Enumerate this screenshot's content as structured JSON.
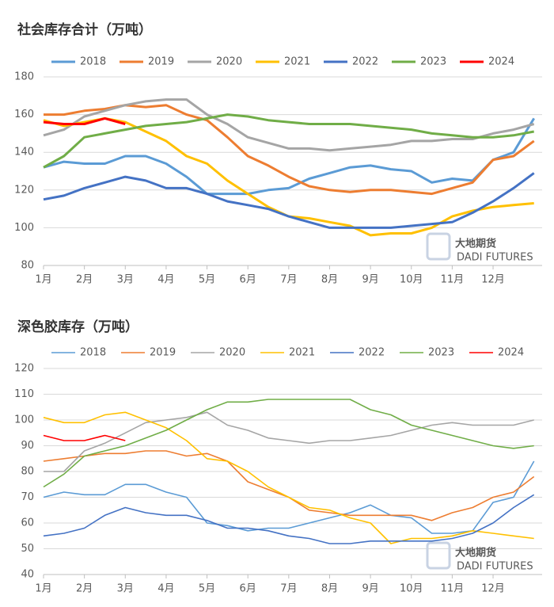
{
  "chart_data": [
    {
      "type": "line",
      "title": "社会库存合计（万吨）",
      "watermark": "大地期货",
      "watermark_sub": "DADI FUTURES",
      "x": [
        0,
        0.5,
        1,
        1.5,
        2,
        2.5,
        3,
        3.5,
        4,
        4.5,
        5,
        5.5,
        6,
        6.5,
        7,
        7.5,
        8,
        8.5,
        9,
        9.5,
        10,
        10.5,
        11,
        11.5,
        12
      ],
      "xlim": [
        0,
        12.2
      ],
      "xticks": [
        {
          "value": 0,
          "label": "1月"
        },
        {
          "value": 1,
          "label": "2月"
        },
        {
          "value": 2,
          "label": "3月"
        },
        {
          "value": 3,
          "label": "4月"
        },
        {
          "value": 4,
          "label": "5月"
        },
        {
          "value": 5,
          "label": "6月"
        },
        {
          "value": 6,
          "label": "7月"
        },
        {
          "value": 7,
          "label": "8月"
        },
        {
          "value": 8,
          "label": "9月"
        },
        {
          "value": 9,
          "label": "10月"
        },
        {
          "value": 10,
          "label": "11月"
        },
        {
          "value": 11,
          "label": "12月"
        }
      ],
      "ylim": [
        80,
        180
      ],
      "yticks": [
        80,
        100,
        120,
        140,
        160,
        180
      ],
      "grid": true,
      "series": [
        {
          "name": "2018",
          "color": "#5b9bd5",
          "values": [
            132,
            135,
            134,
            134,
            138,
            138,
            134,
            127,
            118,
            118,
            118,
            120,
            121,
            126,
            129,
            132,
            133,
            131,
            130,
            124,
            126,
            125,
            136,
            140,
            158
          ]
        },
        {
          "name": "2019",
          "color": "#ed7d31",
          "values": [
            160,
            160,
            162,
            163,
            165,
            164,
            165,
            160,
            157,
            148,
            138,
            133,
            127,
            122,
            120,
            119,
            120,
            120,
            119,
            118,
            121,
            124,
            136,
            138,
            146
          ]
        },
        {
          "name": "2020",
          "color": "#a5a5a5",
          "values": [
            149,
            152,
            159,
            162,
            165,
            167,
            168,
            168,
            160,
            155,
            148,
            145,
            142,
            142,
            141,
            142,
            143,
            144,
            146,
            146,
            147,
            147,
            150,
            152,
            155
          ]
        },
        {
          "name": "2021",
          "color": "#ffc000",
          "values": [
            157,
            154,
            156,
            158,
            156,
            151,
            146,
            138,
            134,
            125,
            118,
            111,
            106,
            105,
            103,
            101,
            96,
            97,
            97,
            100,
            106,
            109,
            111,
            112,
            113
          ]
        },
        {
          "name": "2022",
          "color": "#4472c4",
          "values": [
            115,
            117,
            121,
            124,
            127,
            125,
            121,
            121,
            118,
            114,
            112,
            110,
            106,
            103,
            100,
            100,
            100,
            100,
            101,
            102,
            103,
            108,
            114,
            121,
            129
          ]
        },
        {
          "name": "2023",
          "color": "#70ad47",
          "values": [
            132,
            138,
            148,
            150,
            152,
            154,
            155,
            156,
            158,
            160,
            159,
            157,
            156,
            155,
            155,
            155,
            154,
            153,
            152,
            150,
            149,
            148,
            148,
            149,
            151
          ]
        },
        {
          "name": "2024",
          "color": "#ff0000",
          "values": [
            156,
            155,
            155,
            158,
            155,
            null,
            null,
            null,
            null,
            null,
            null,
            null,
            null,
            null,
            null,
            null,
            null,
            null,
            null,
            null,
            null,
            null,
            null,
            null,
            null
          ]
        }
      ]
    },
    {
      "type": "line",
      "title": "深色胶库存（万吨）",
      "watermark": "大地期货",
      "watermark_sub": "DADI FUTURES",
      "x": [
        0,
        0.5,
        1,
        1.5,
        2,
        2.5,
        3,
        3.5,
        4,
        4.5,
        5,
        5.5,
        6,
        6.5,
        7,
        7.5,
        8,
        8.5,
        9,
        9.5,
        10,
        10.5,
        11,
        11.5,
        12
      ],
      "xlim": [
        0,
        12.2
      ],
      "xticks": [
        {
          "value": 0,
          "label": "1月"
        },
        {
          "value": 1,
          "label": "2月"
        },
        {
          "value": 2,
          "label": "3月"
        },
        {
          "value": 3,
          "label": "4月"
        },
        {
          "value": 4,
          "label": "5月"
        },
        {
          "value": 5,
          "label": "6月"
        },
        {
          "value": 6,
          "label": "7月"
        },
        {
          "value": 7,
          "label": "8月"
        },
        {
          "value": 8,
          "label": "9月"
        },
        {
          "value": 9,
          "label": "10月"
        },
        {
          "value": 10,
          "label": "11月"
        },
        {
          "value": 11,
          "label": "12月"
        }
      ],
      "ylim": [
        40,
        120
      ],
      "yticks": [
        40,
        50,
        60,
        70,
        80,
        90,
        100,
        110,
        120
      ],
      "grid": true,
      "series": [
        {
          "name": "2018",
          "color": "#5b9bd5",
          "values": [
            70,
            72,
            71,
            71,
            75,
            75,
            72,
            70,
            60,
            59,
            57,
            58,
            58,
            60,
            62,
            64,
            67,
            63,
            62,
            56,
            56,
            57,
            68,
            70,
            84
          ]
        },
        {
          "name": "2019",
          "color": "#ed7d31",
          "values": [
            84,
            85,
            86,
            87,
            87,
            88,
            88,
            86,
            87,
            84,
            76,
            73,
            70,
            65,
            64,
            63,
            63,
            63,
            63,
            61,
            64,
            66,
            70,
            72,
            78
          ]
        },
        {
          "name": "2020",
          "color": "#a5a5a5",
          "values": [
            80,
            80,
            88,
            91,
            95,
            99,
            100,
            101,
            103,
            98,
            96,
            93,
            92,
            91,
            92,
            92,
            93,
            94,
            96,
            98,
            99,
            98,
            98,
            98,
            100
          ]
        },
        {
          "name": "2021",
          "color": "#ffc000",
          "values": [
            101,
            99,
            99,
            102,
            103,
            100,
            97,
            92,
            85,
            84,
            80,
            74,
            70,
            66,
            65,
            62,
            60,
            52,
            54,
            54,
            55,
            57,
            56,
            55,
            54
          ]
        },
        {
          "name": "2022",
          "color": "#4472c4",
          "values": [
            55,
            56,
            58,
            63,
            66,
            64,
            63,
            63,
            61,
            58,
            58,
            57,
            55,
            54,
            52,
            52,
            53,
            53,
            53,
            53,
            54,
            56,
            60,
            66,
            71
          ]
        },
        {
          "name": "2023",
          "color": "#70ad47",
          "values": [
            74,
            79,
            86,
            88,
            90,
            93,
            96,
            100,
            104,
            107,
            107,
            108,
            108,
            108,
            108,
            108,
            104,
            102,
            98,
            96,
            94,
            92,
            90,
            89,
            90
          ]
        },
        {
          "name": "2024",
          "color": "#ff0000",
          "values": [
            94,
            92,
            92,
            94,
            92,
            null,
            null,
            null,
            null,
            null,
            null,
            null,
            null,
            null,
            null,
            null,
            null,
            null,
            null,
            null,
            null,
            null,
            null,
            null,
            null
          ]
        }
      ]
    }
  ]
}
